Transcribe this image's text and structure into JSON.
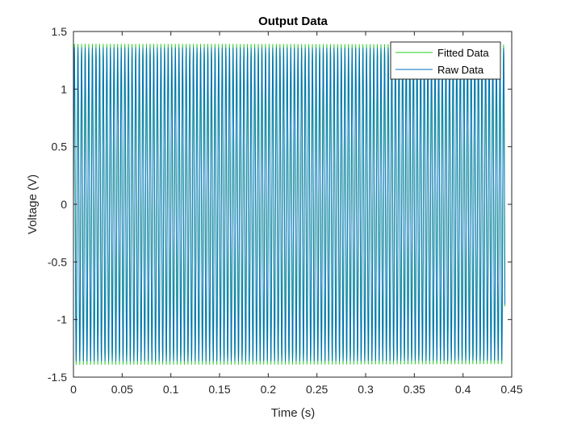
{
  "chart_data": {
    "type": "line",
    "title": "Output Data",
    "xlabel": "Time (s)",
    "ylabel": "Voltage (V)",
    "xlim": [
      0,
      0.45
    ],
    "ylim": [
      -1.5,
      1.5
    ],
    "xticks": [
      0,
      0.05,
      0.1,
      0.15,
      0.2,
      0.25,
      0.3,
      0.35,
      0.4,
      0.45
    ],
    "xtick_labels": [
      "0",
      "0.05",
      "0.1",
      "0.15",
      "0.2",
      "0.25",
      "0.3",
      "0.35",
      "0.4",
      "0.45"
    ],
    "yticks": [
      -1.5,
      -1,
      -0.5,
      0,
      0.5,
      1,
      1.5
    ],
    "ytick_labels": [
      "-1.5",
      "-1",
      "-0.5",
      "0",
      "0.5",
      "1",
      "1.5"
    ],
    "grid": false,
    "legend_position": "top-right",
    "series": [
      {
        "name": "Fitted Data",
        "color": "#22cc22",
        "waveform": "sine",
        "amplitude": 1.39,
        "frequency_hz": 270,
        "x_range": [
          0,
          0.443
        ]
      },
      {
        "name": "Raw Data",
        "color": "#0072bd",
        "waveform": "sine",
        "amplitude": 1.36,
        "frequency_hz": 270,
        "x_range": [
          0,
          0.443
        ]
      }
    ]
  }
}
